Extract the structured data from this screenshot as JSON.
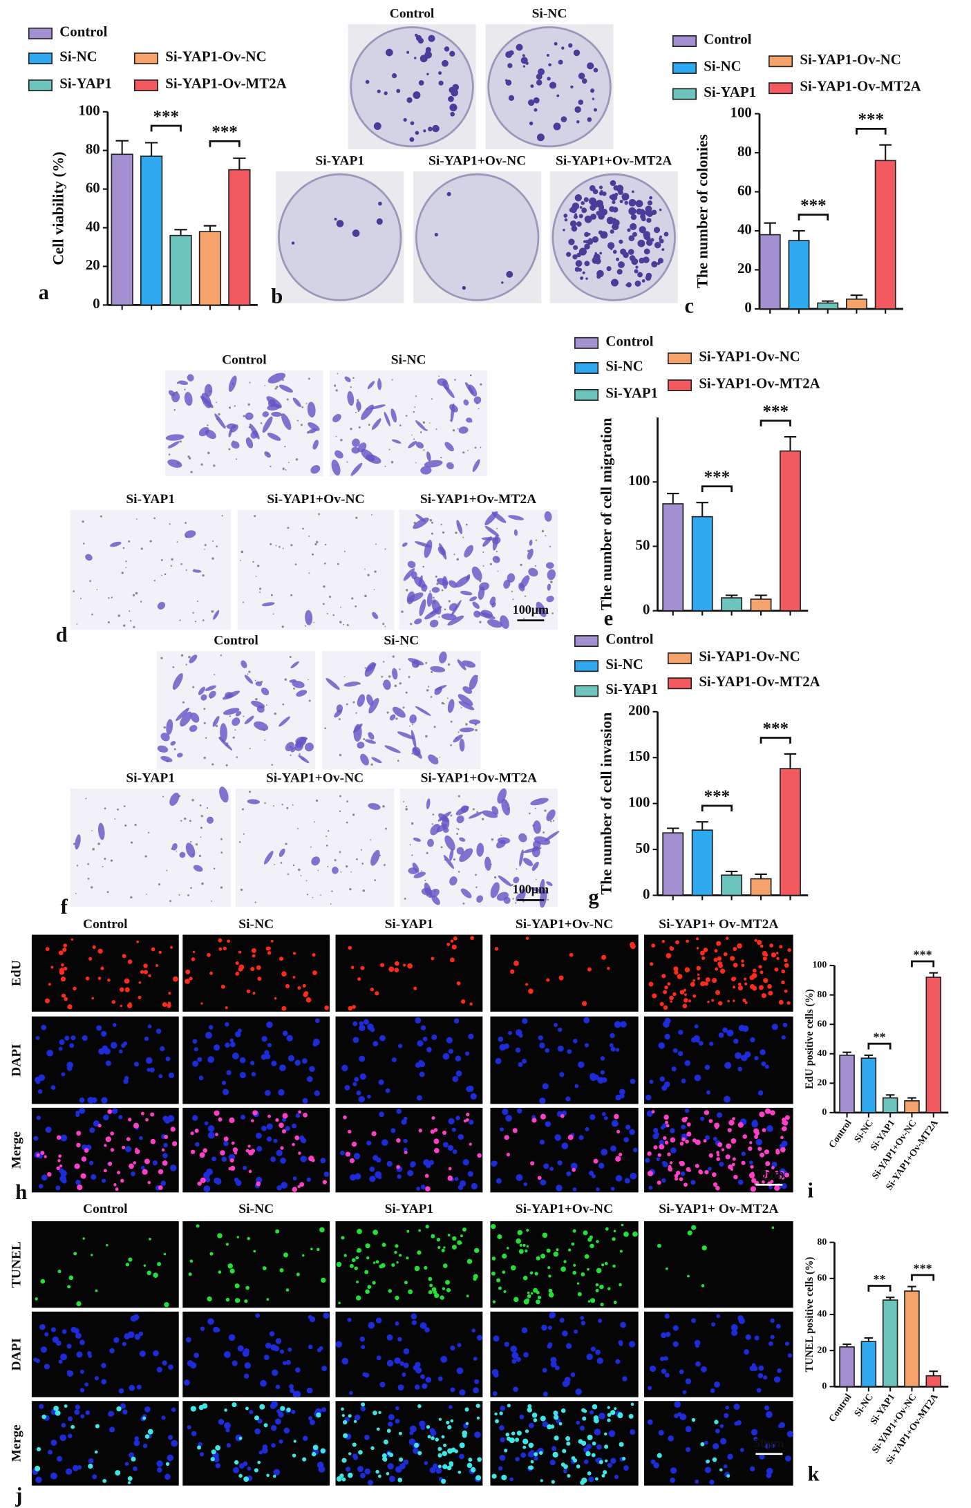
{
  "chart_data": [
    {
      "type": "bar",
      "panel": "a",
      "y_label": "Cell viability (%)",
      "legend": [
        "Control",
        "Si-NC",
        "Si-YAP1",
        "Si-YAP1-Ov-NC",
        "Si-YAP1-Ov-MT2A"
      ],
      "categories": [
        null,
        null,
        null,
        null,
        null
      ],
      "values": [
        78,
        77,
        36,
        38,
        70
      ],
      "errors": [
        7,
        7,
        3,
        3,
        6
      ],
      "colors": [
        "#a48fd0",
        "#2fa9f0",
        "#6cc4bd",
        "#f6a26b",
        "#f25a5f"
      ],
      "ylim": [
        0,
        100
      ],
      "yticks": [
        0,
        20,
        40,
        60,
        80,
        100
      ],
      "annotations": [
        {
          "text": "***",
          "from": 1,
          "to": 2
        },
        {
          "text": "***",
          "from": 3,
          "to": 4
        }
      ]
    },
    {
      "type": "bar",
      "panel": "c",
      "y_label": "The number of colonies",
      "legend": [
        "Control",
        "Si-NC",
        "Si-YAP1",
        "Si-YAP1-Ov-NC",
        "Si-YAP1-Ov-MT2A"
      ],
      "categories": [
        null,
        null,
        null,
        null,
        null
      ],
      "values": [
        38,
        35,
        3,
        5,
        76
      ],
      "errors": [
        6,
        5,
        1,
        2,
        8
      ],
      "colors": [
        "#a48fd0",
        "#2fa9f0",
        "#6cc4bd",
        "#f6a26b",
        "#f25a5f"
      ],
      "ylim": [
        0,
        100
      ],
      "yticks": [
        0,
        20,
        40,
        60,
        80,
        100
      ],
      "annotations": [
        {
          "text": "***",
          "from": 1,
          "to": 2
        },
        {
          "text": "***",
          "from": 3,
          "to": 4
        }
      ]
    },
    {
      "type": "bar",
      "panel": "e",
      "y_label": "The number of cell migration",
      "legend": [
        "Control",
        "Si-NC",
        "Si-YAP1",
        "Si-YAP1-Ov-NC",
        "Si-YAP1-Ov-MT2A"
      ],
      "categories": [
        null,
        null,
        null,
        null,
        null
      ],
      "values": [
        83,
        73,
        10,
        9,
        124
      ],
      "errors": [
        8,
        11,
        2,
        3,
        11
      ],
      "colors": [
        "#a48fd0",
        "#2fa9f0",
        "#6cc4bd",
        "#f6a26b",
        "#f25a5f"
      ],
      "ylim": [
        0,
        150
      ],
      "yticks": [
        0,
        50,
        100
      ],
      "annotations": [
        {
          "text": "***",
          "from": 1,
          "to": 2
        },
        {
          "text": "***",
          "from": 3,
          "to": 4
        }
      ]
    },
    {
      "type": "bar",
      "panel": "g",
      "y_label": "The number of cell invasion",
      "legend": [
        "Control",
        "Si-NC",
        "Si-YAP1",
        "Si-YAP1-Ov-NC",
        "Si-YAP1-Ov-MT2A"
      ],
      "categories": [
        null,
        null,
        null,
        null,
        null
      ],
      "values": [
        68,
        71,
        22,
        18,
        138
      ],
      "errors": [
        5,
        9,
        4,
        5,
        16
      ],
      "colors": [
        "#a48fd0",
        "#2fa9f0",
        "#6cc4bd",
        "#f6a26b",
        "#f25a5f"
      ],
      "ylim": [
        0,
        200
      ],
      "yticks": [
        0,
        50,
        100,
        150,
        200
      ],
      "annotations": [
        {
          "text": "***",
          "from": 1,
          "to": 2
        },
        {
          "text": "***",
          "from": 3,
          "to": 4
        }
      ]
    },
    {
      "type": "bar",
      "panel": "i",
      "y_label": "EdU positive cells (%)",
      "categories": [
        "Control",
        "Si-NC",
        "Si-YAP1",
        "Si-YAP1+Ov-NC",
        "Si-YAP1+Ov-MT2A"
      ],
      "values": [
        39,
        37,
        10,
        8,
        92
      ],
      "errors": [
        2,
        2,
        2,
        2,
        3
      ],
      "colors": [
        "#a48fd0",
        "#2fa9f0",
        "#6cc4bd",
        "#f6a26b",
        "#f25a5f"
      ],
      "ylim": [
        0,
        100
      ],
      "yticks": [
        0,
        20,
        40,
        60,
        80,
        100
      ],
      "annotations": [
        {
          "text": "**",
          "from": 1,
          "to": 2
        },
        {
          "text": "***",
          "from": 3,
          "to": 4
        }
      ]
    },
    {
      "type": "bar",
      "panel": "k",
      "y_label": "TUNEL positive cells (%)",
      "categories": [
        "Control",
        "Si-NC",
        "Si-YAP1",
        "Si-YAP1+Ov-NC",
        "Si-YAP1+Ov-MT2A"
      ],
      "values": [
        22,
        25,
        48,
        53,
        6
      ],
      "errors": [
        1.5,
        2,
        1.5,
        2.5,
        2.5
      ],
      "colors": [
        "#a48fd0",
        "#2fa9f0",
        "#6cc4bd",
        "#f6a26b",
        "#f25a5f"
      ],
      "ylim": [
        0,
        80
      ],
      "yticks": [
        0,
        20,
        40,
        60,
        80
      ],
      "annotations": [
        {
          "text": "**",
          "from": 1,
          "to": 2
        },
        {
          "text": "***",
          "from": 3,
          "to": 4
        }
      ]
    }
  ],
  "image_panels": [
    {
      "panel": "b",
      "titles": [
        "Control",
        "Si-NC",
        "Si-YAP1",
        "Si-YAP1+Ov-NC",
        "Si-YAP1+Ov-MT2A"
      ]
    },
    {
      "panel": "d",
      "titles": [
        "Control",
        "Si-NC",
        "Si-YAP1",
        "Si-YAP1+Ov-NC",
        "Si-YAP1+Ov-MT2A"
      ],
      "scale_bar": "100μm"
    },
    {
      "panel": "f",
      "titles": [
        "Control",
        "Si-NC",
        "Si-YAP1",
        "Si-YAP1+Ov-NC",
        "Si-YAP1+Ov-MT2A"
      ],
      "scale_bar": "100μm"
    },
    {
      "panel": "h",
      "titles": [
        "Control",
        "Si-NC",
        "Si-YAP1",
        "Si-YAP1+Ov-NC",
        "Si-YAP1+ Ov-MT2A"
      ],
      "rows": [
        "EdU",
        "DAPI",
        "Merge"
      ],
      "scale_bar": "50μm"
    },
    {
      "panel": "j",
      "titles": [
        "Control",
        "Si-NC",
        "Si-YAP1",
        "Si-YAP1+Ov-NC",
        "Si-YAP1+ Ov-MT2A"
      ],
      "rows": [
        "TUNEL",
        "DAPI",
        "Merge"
      ],
      "scale_bar": "50μm"
    }
  ]
}
